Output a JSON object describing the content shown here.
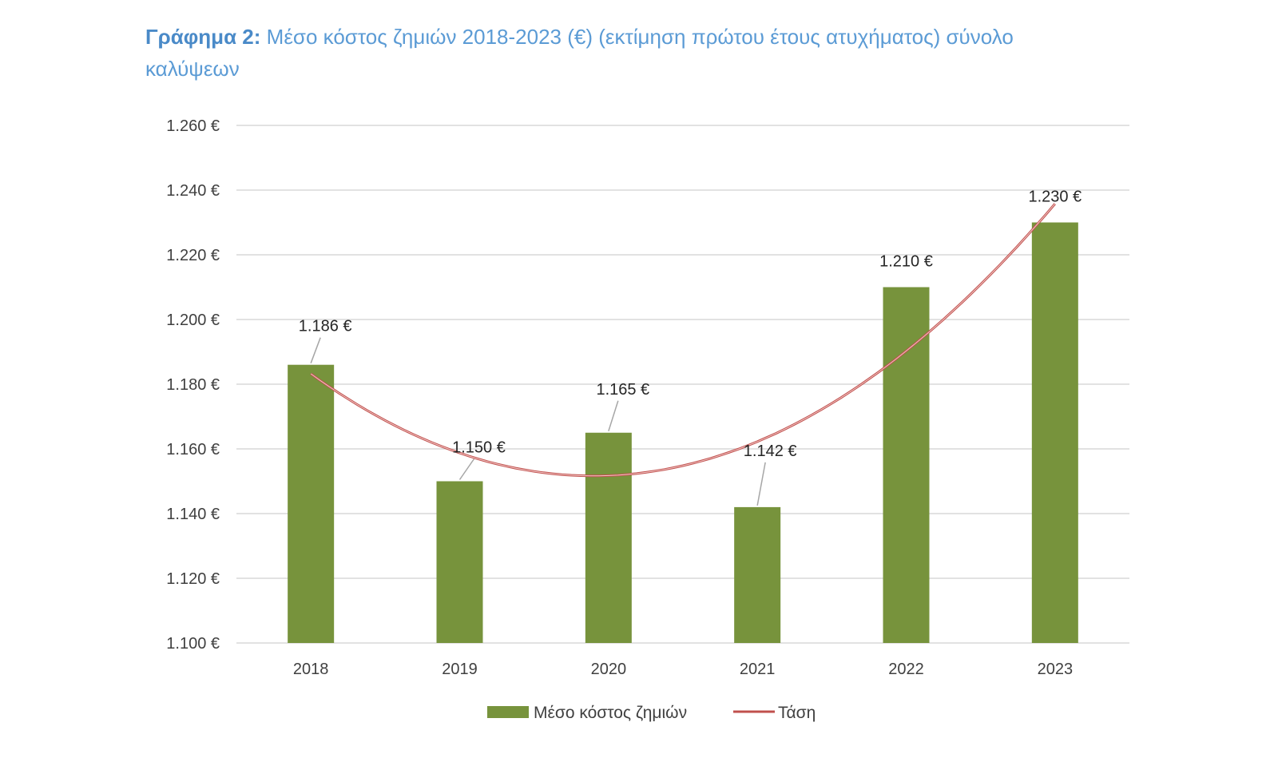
{
  "header": {
    "title_prefix": "Γράφημα 2:",
    "title_text": "Μέσο κόστος ζημιών 2018-2023 (€) (εκτίμηση πρώτου έτους ατυχήματος) σύνολο καλύψεων"
  },
  "colors": {
    "bar": "#77933c",
    "trend": "#c0504d",
    "grid": "#d9d9d9",
    "title": "#5b9bd5"
  },
  "chart_data": {
    "type": "bar",
    "categories": [
      "2018",
      "2019",
      "2020",
      "2021",
      "2022",
      "2023"
    ],
    "series": [
      {
        "name": "Μέσο κόστος ζημιών",
        "values": [
          1186,
          1150,
          1165,
          1142,
          1210,
          1230
        ],
        "data_labels": [
          "1.186 €",
          "1.150 €",
          "1.165 €",
          "1.142 €",
          "1.210 €",
          "1.230 €"
        ]
      }
    ],
    "trendline": {
      "name": "Τάση",
      "kind": "polynomial-2",
      "values": [
        1183,
        1159,
        1152,
        1162,
        1190,
        1236
      ]
    },
    "y_ticks": [
      1100,
      1120,
      1140,
      1160,
      1180,
      1200,
      1220,
      1240,
      1260
    ],
    "y_tick_labels": [
      "1.100 €",
      "1.120 €",
      "1.140 €",
      "1.160 €",
      "1.180 €",
      "1.200 €",
      "1.220 €",
      "1.240 €",
      "1.260 €"
    ],
    "ylim": [
      1100,
      1260
    ],
    "grid": true,
    "legend_position": "bottom",
    "title": "Γράφημα 2: Μέσο κόστος ζημιών 2018-2023 (€) (εκτίμηση πρώτου έτους ατυχήματος) σύνολο καλύψεων",
    "xlabel": "",
    "ylabel": ""
  }
}
